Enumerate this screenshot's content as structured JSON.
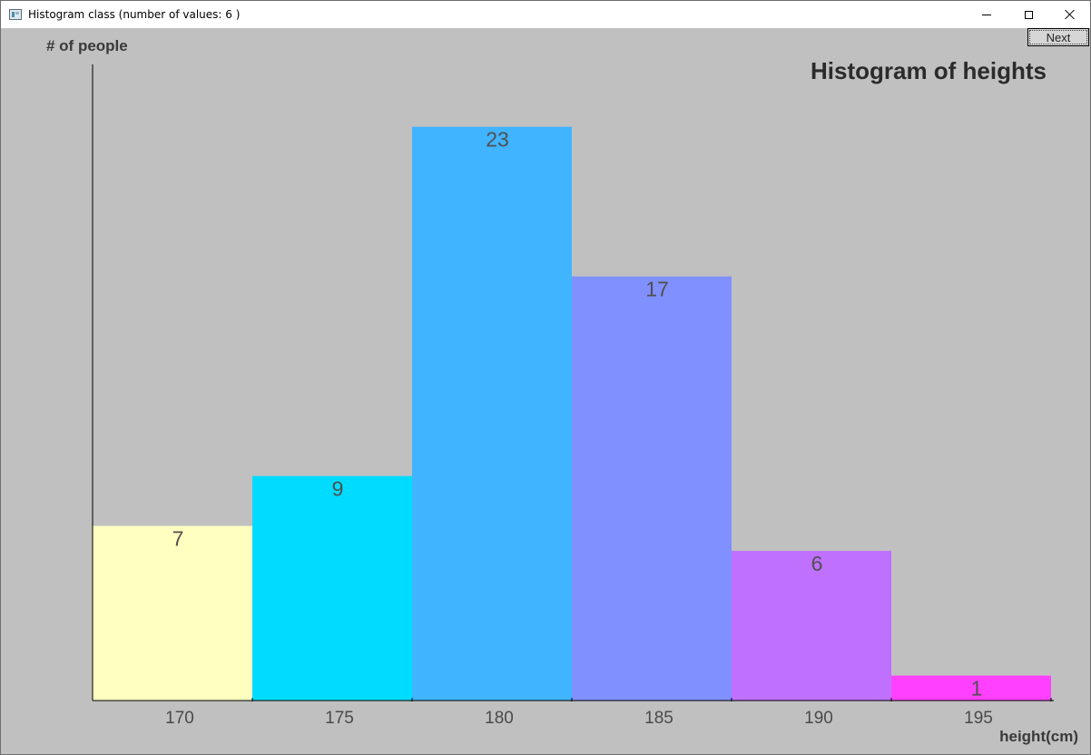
{
  "window": {
    "title": "Histogram class (number of values: 6 )"
  },
  "controls": {
    "next_label": "Next"
  },
  "chart_data": {
    "type": "bar",
    "title": "Histogram of heights",
    "xlabel": "height(cm)",
    "ylabel": "# of people",
    "categories": [
      "170",
      "175",
      "180",
      "185",
      "190",
      "195"
    ],
    "values": [
      7,
      9,
      23,
      17,
      6,
      1
    ],
    "colors": [
      "#ffffc0",
      "#00dcff",
      "#40b4ff",
      "#8090ff",
      "#c070ff",
      "#ff40ff"
    ],
    "ylim": [
      0,
      25.5
    ],
    "grid": false,
    "legend": "none"
  }
}
